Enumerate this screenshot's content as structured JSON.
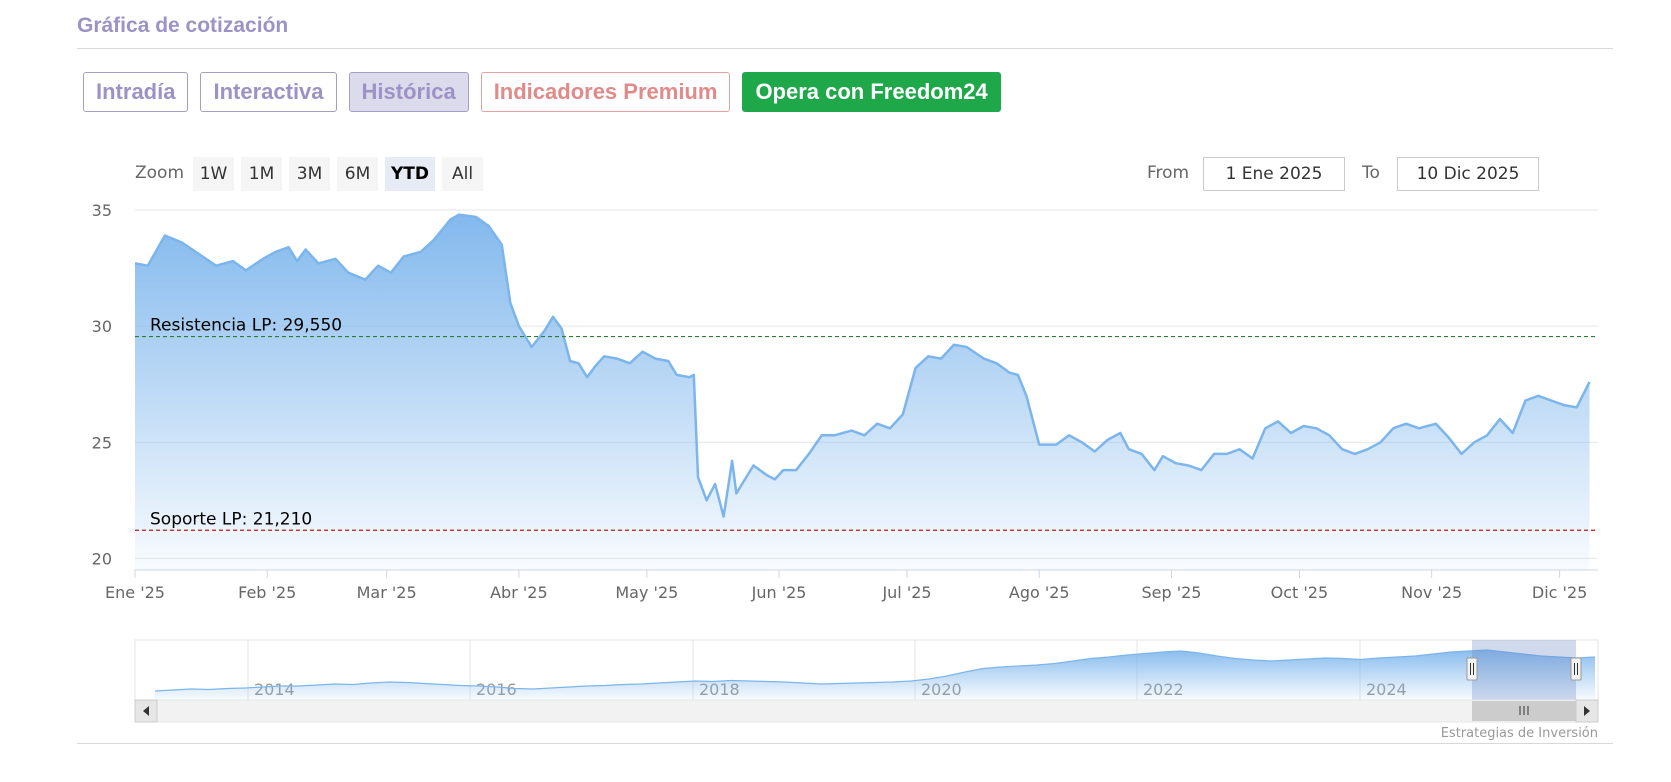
{
  "page": {
    "title": "Gráfica de cotización",
    "tabs": [
      {
        "label": "Intradía",
        "style": "normal"
      },
      {
        "label": "Interactiva",
        "style": "normal"
      },
      {
        "label": "Histórica",
        "style": "active"
      },
      {
        "label": "Indicadores Premium",
        "style": "premium"
      },
      {
        "label": "Opera con Freedom24",
        "style": "cta"
      }
    ]
  },
  "toolbar": {
    "zoom_label": "Zoom",
    "zoom_buttons": [
      "1W",
      "1M",
      "3M",
      "6M",
      "YTD",
      "All"
    ],
    "zoom_selected": "YTD",
    "from_label": "From",
    "from_value": "1 Ene 2025",
    "to_label": "To",
    "to_value": "10 Dic 2025"
  },
  "credits": "Estrategias de Inversión",
  "colors": {
    "line": "#7cb5ec",
    "resistance": "#2e7d32",
    "support": "#b71c1c",
    "accent": "#9c92c6",
    "cta": "#1fa84a"
  },
  "chart_data": {
    "type": "area",
    "y_ticks": [
      20,
      25,
      30,
      35
    ],
    "ylim": [
      19.5,
      35
    ],
    "x_ticks": [
      "Ene '25",
      "Feb '25",
      "Mar '25",
      "Abr '25",
      "May '25",
      "Jun '25",
      "Jul '25",
      "Ago '25",
      "Sep '25",
      "Oct '25",
      "Nov '25",
      "Dic '25"
    ],
    "x_tick_dates": [
      "2025-01-01",
      "2025-02-01",
      "2025-03-01",
      "2025-04-01",
      "2025-05-01",
      "2025-06-01",
      "2025-07-01",
      "2025-08-01",
      "2025-09-01",
      "2025-10-01",
      "2025-11-01",
      "2025-12-01"
    ],
    "x_range": [
      "2025-01-01",
      "2025-12-10"
    ],
    "grid": true,
    "legend": "none",
    "series": [
      {
        "points": [
          [
            "2025-01-01",
            32.7
          ],
          [
            "2025-01-04",
            32.6
          ],
          [
            "2025-01-08",
            33.9
          ],
          [
            "2025-01-12",
            33.6
          ],
          [
            "2025-01-16",
            33.1
          ],
          [
            "2025-01-20",
            32.6
          ],
          [
            "2025-01-24",
            32.8
          ],
          [
            "2025-01-27",
            32.4
          ],
          [
            "2025-01-31",
            32.9
          ],
          [
            "2025-02-03",
            33.2
          ],
          [
            "2025-02-06",
            33.4
          ],
          [
            "2025-02-08",
            32.8
          ],
          [
            "2025-02-10",
            33.3
          ],
          [
            "2025-02-13",
            32.7
          ],
          [
            "2025-02-17",
            32.9
          ],
          [
            "2025-02-20",
            32.3
          ],
          [
            "2025-02-24",
            32.0
          ],
          [
            "2025-02-27",
            32.6
          ],
          [
            "2025-03-02",
            32.3
          ],
          [
            "2025-03-05",
            33.0
          ],
          [
            "2025-03-09",
            33.2
          ],
          [
            "2025-03-12",
            33.7
          ],
          [
            "2025-03-16",
            34.6
          ],
          [
            "2025-03-18",
            34.8
          ],
          [
            "2025-03-22",
            34.7
          ],
          [
            "2025-03-25",
            34.3
          ],
          [
            "2025-03-28",
            33.5
          ],
          [
            "2025-03-30",
            31.0
          ],
          [
            "2025-04-01",
            30.0
          ],
          [
            "2025-04-04",
            29.1
          ],
          [
            "2025-04-07",
            29.8
          ],
          [
            "2025-04-09",
            30.4
          ],
          [
            "2025-04-11",
            29.9
          ],
          [
            "2025-04-13",
            28.5
          ],
          [
            "2025-04-15",
            28.4
          ],
          [
            "2025-04-17",
            27.8
          ],
          [
            "2025-04-19",
            28.3
          ],
          [
            "2025-04-21",
            28.7
          ],
          [
            "2025-04-24",
            28.6
          ],
          [
            "2025-04-27",
            28.4
          ],
          [
            "2025-04-30",
            28.9
          ],
          [
            "2025-05-03",
            28.6
          ],
          [
            "2025-05-06",
            28.5
          ],
          [
            "2025-05-08",
            27.9
          ],
          [
            "2025-05-11",
            27.8
          ],
          [
            "2025-05-12",
            27.9
          ],
          [
            "2025-05-13",
            23.5
          ],
          [
            "2025-05-15",
            22.5
          ],
          [
            "2025-05-17",
            23.2
          ],
          [
            "2025-05-19",
            21.8
          ],
          [
            "2025-05-21",
            24.2
          ],
          [
            "2025-05-22",
            22.8
          ],
          [
            "2025-05-24",
            23.4
          ],
          [
            "2025-05-26",
            24.0
          ],
          [
            "2025-05-29",
            23.6
          ],
          [
            "2025-05-31",
            23.4
          ],
          [
            "2025-06-02",
            23.8
          ],
          [
            "2025-06-05",
            23.8
          ],
          [
            "2025-06-08",
            24.5
          ],
          [
            "2025-06-11",
            25.3
          ],
          [
            "2025-06-14",
            25.3
          ],
          [
            "2025-06-18",
            25.5
          ],
          [
            "2025-06-21",
            25.3
          ],
          [
            "2025-06-24",
            25.8
          ],
          [
            "2025-06-27",
            25.6
          ],
          [
            "2025-06-30",
            26.2
          ],
          [
            "2025-07-03",
            28.2
          ],
          [
            "2025-07-06",
            28.7
          ],
          [
            "2025-07-09",
            28.6
          ],
          [
            "2025-07-12",
            29.2
          ],
          [
            "2025-07-15",
            29.1
          ],
          [
            "2025-07-19",
            28.6
          ],
          [
            "2025-07-22",
            28.4
          ],
          [
            "2025-07-25",
            28.0
          ],
          [
            "2025-07-27",
            27.9
          ],
          [
            "2025-07-29",
            27.0
          ],
          [
            "2025-08-01",
            24.9
          ],
          [
            "2025-08-05",
            24.9
          ],
          [
            "2025-08-08",
            25.3
          ],
          [
            "2025-08-11",
            25.0
          ],
          [
            "2025-08-14",
            24.6
          ],
          [
            "2025-08-17",
            25.1
          ],
          [
            "2025-08-20",
            25.4
          ],
          [
            "2025-08-22",
            24.7
          ],
          [
            "2025-08-25",
            24.5
          ],
          [
            "2025-08-28",
            23.8
          ],
          [
            "2025-08-30",
            24.4
          ],
          [
            "2025-09-02",
            24.1
          ],
          [
            "2025-09-05",
            24.0
          ],
          [
            "2025-09-08",
            23.8
          ],
          [
            "2025-09-11",
            24.5
          ],
          [
            "2025-09-14",
            24.5
          ],
          [
            "2025-09-17",
            24.7
          ],
          [
            "2025-09-20",
            24.3
          ],
          [
            "2025-09-23",
            25.6
          ],
          [
            "2025-09-26",
            25.9
          ],
          [
            "2025-09-29",
            25.4
          ],
          [
            "2025-10-02",
            25.7
          ],
          [
            "2025-10-05",
            25.6
          ],
          [
            "2025-10-08",
            25.3
          ],
          [
            "2025-10-11",
            24.7
          ],
          [
            "2025-10-14",
            24.5
          ],
          [
            "2025-10-17",
            24.7
          ],
          [
            "2025-10-20",
            25.0
          ],
          [
            "2025-10-23",
            25.6
          ],
          [
            "2025-10-26",
            25.8
          ],
          [
            "2025-10-29",
            25.6
          ],
          [
            "2025-11-02",
            25.8
          ],
          [
            "2025-11-05",
            25.2
          ],
          [
            "2025-11-08",
            24.5
          ],
          [
            "2025-11-11",
            25.0
          ],
          [
            "2025-11-14",
            25.3
          ],
          [
            "2025-11-17",
            26.0
          ],
          [
            "2025-11-20",
            25.4
          ],
          [
            "2025-11-23",
            26.8
          ],
          [
            "2025-11-26",
            27.0
          ],
          [
            "2025-11-29",
            26.8
          ],
          [
            "2025-12-02",
            26.6
          ],
          [
            "2025-12-05",
            26.5
          ],
          [
            "2025-12-08",
            27.6
          ]
        ]
      }
    ],
    "reference_lines": [
      {
        "label": "Resistencia LP: 29,550",
        "value": 29.55,
        "color": "#2e7d32"
      },
      {
        "label": "Soporte LP: 21,210",
        "value": 21.21,
        "color": "#b71c1c"
      }
    ],
    "navigator": {
      "x_ticks": [
        "2014",
        "2016",
        "2018",
        "2020",
        "2022",
        "2024"
      ]
    }
  }
}
